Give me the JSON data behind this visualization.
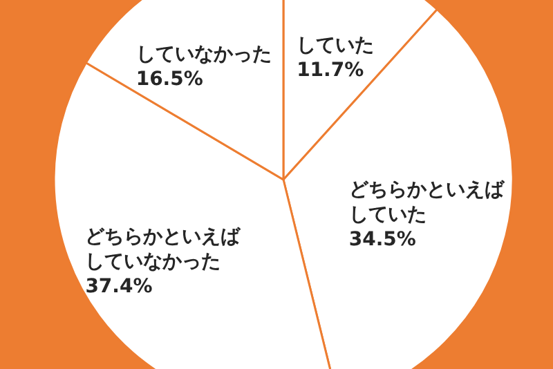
{
  "chart_data": {
    "type": "pie",
    "categories": [
      "していた",
      "どちらかといえばしていた",
      "どちらかといえばしていなかった",
      "していなかった"
    ],
    "values": [
      11.7,
      34.5,
      37.4,
      16.5
    ],
    "value_labels": [
      "11.7%",
      "34.5%",
      "37.4%",
      "16.5%"
    ],
    "colors": [
      "#ffffff",
      "#ffffff",
      "#ffffff",
      "#ffffff"
    ]
  }
}
